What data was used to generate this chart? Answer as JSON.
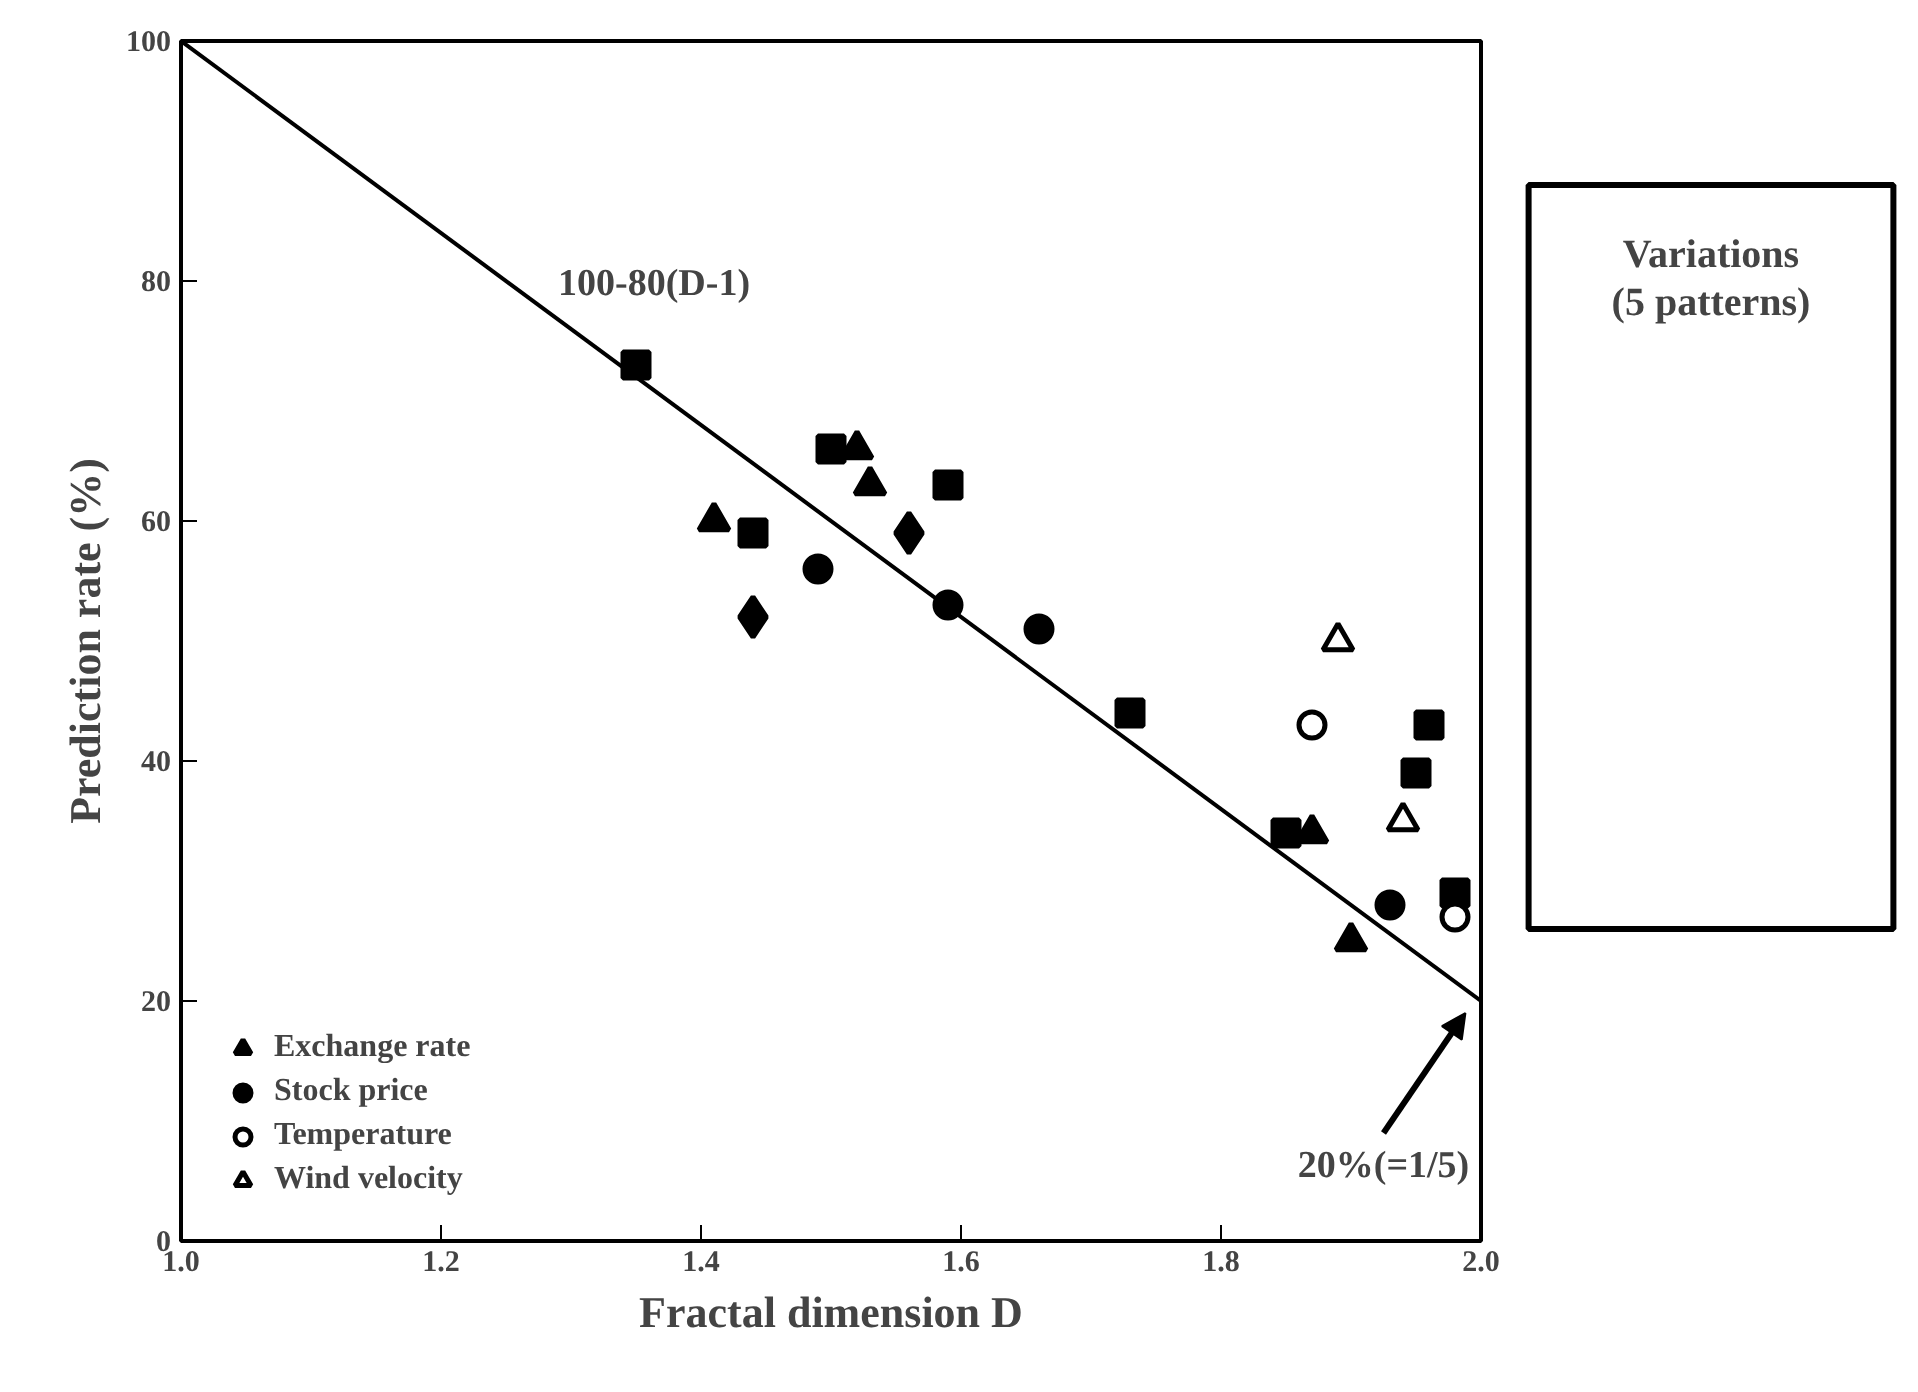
{
  "chart_data": {
    "type": "scatter",
    "xlabel": "Fractal dimension D",
    "ylabel": "Prediction rate (%)",
    "xlim": [
      1.0,
      2.0
    ],
    "ylim": [
      0,
      100
    ],
    "xticks": [
      {
        "value": 1.0,
        "label": "1.0"
      },
      1.2,
      1.4,
      1.6,
      1.8,
      {
        "value": 2.0,
        "label": "2.0"
      }
    ],
    "yticks": [
      0,
      20,
      40,
      60,
      80,
      100
    ],
    "grid": false,
    "legend": "bottom left",
    "series": [
      {
        "type": "line",
        "color": "#000000",
        "line_style": "solid",
        "x": [
          1.0,
          2.0
        ],
        "values": [
          100,
          20
        ]
      },
      {
        "name": "Exchange rate",
        "color": "#000000",
        "marker": "triangle",
        "x": [
          1.41,
          1.52,
          1.53,
          1.87,
          1.9
        ],
        "values": [
          60,
          66,
          63,
          34,
          25
        ]
      },
      {
        "name": "Stock price",
        "color": "#000000",
        "marker": "circle",
        "x": [
          1.49,
          1.59,
          1.66,
          1.93
        ],
        "values": [
          56,
          53,
          51,
          28
        ]
      },
      {
        "color": "#000000",
        "marker": "square",
        "x": [
          1.35,
          1.44,
          1.5,
          1.59,
          1.73,
          1.85,
          1.95,
          1.96,
          1.98
        ],
        "values": [
          73,
          59,
          66,
          63,
          44,
          34,
          39,
          43,
          29
        ]
      },
      {
        "color": "#000000",
        "marker": "diamond",
        "x": [
          1.44,
          1.56
        ],
        "values": [
          52,
          59
        ]
      },
      {
        "name": "Temperature",
        "color": "#000000",
        "marker": "circle_open",
        "x": [
          1.87,
          1.98
        ],
        "values": [
          43,
          27
        ]
      },
      {
        "name": "Wind velocity",
        "color": "#000000",
        "marker": "triangle_open",
        "x": [
          1.89,
          1.94
        ],
        "values": [
          50,
          35
        ]
      }
    ],
    "annotations": [
      {
        "text": "100-80(D-1)",
        "x": 1.29,
        "y": 77
      },
      "20%(=1/5)",
      "Variations\n(5 patterns)"
    ]
  }
}
